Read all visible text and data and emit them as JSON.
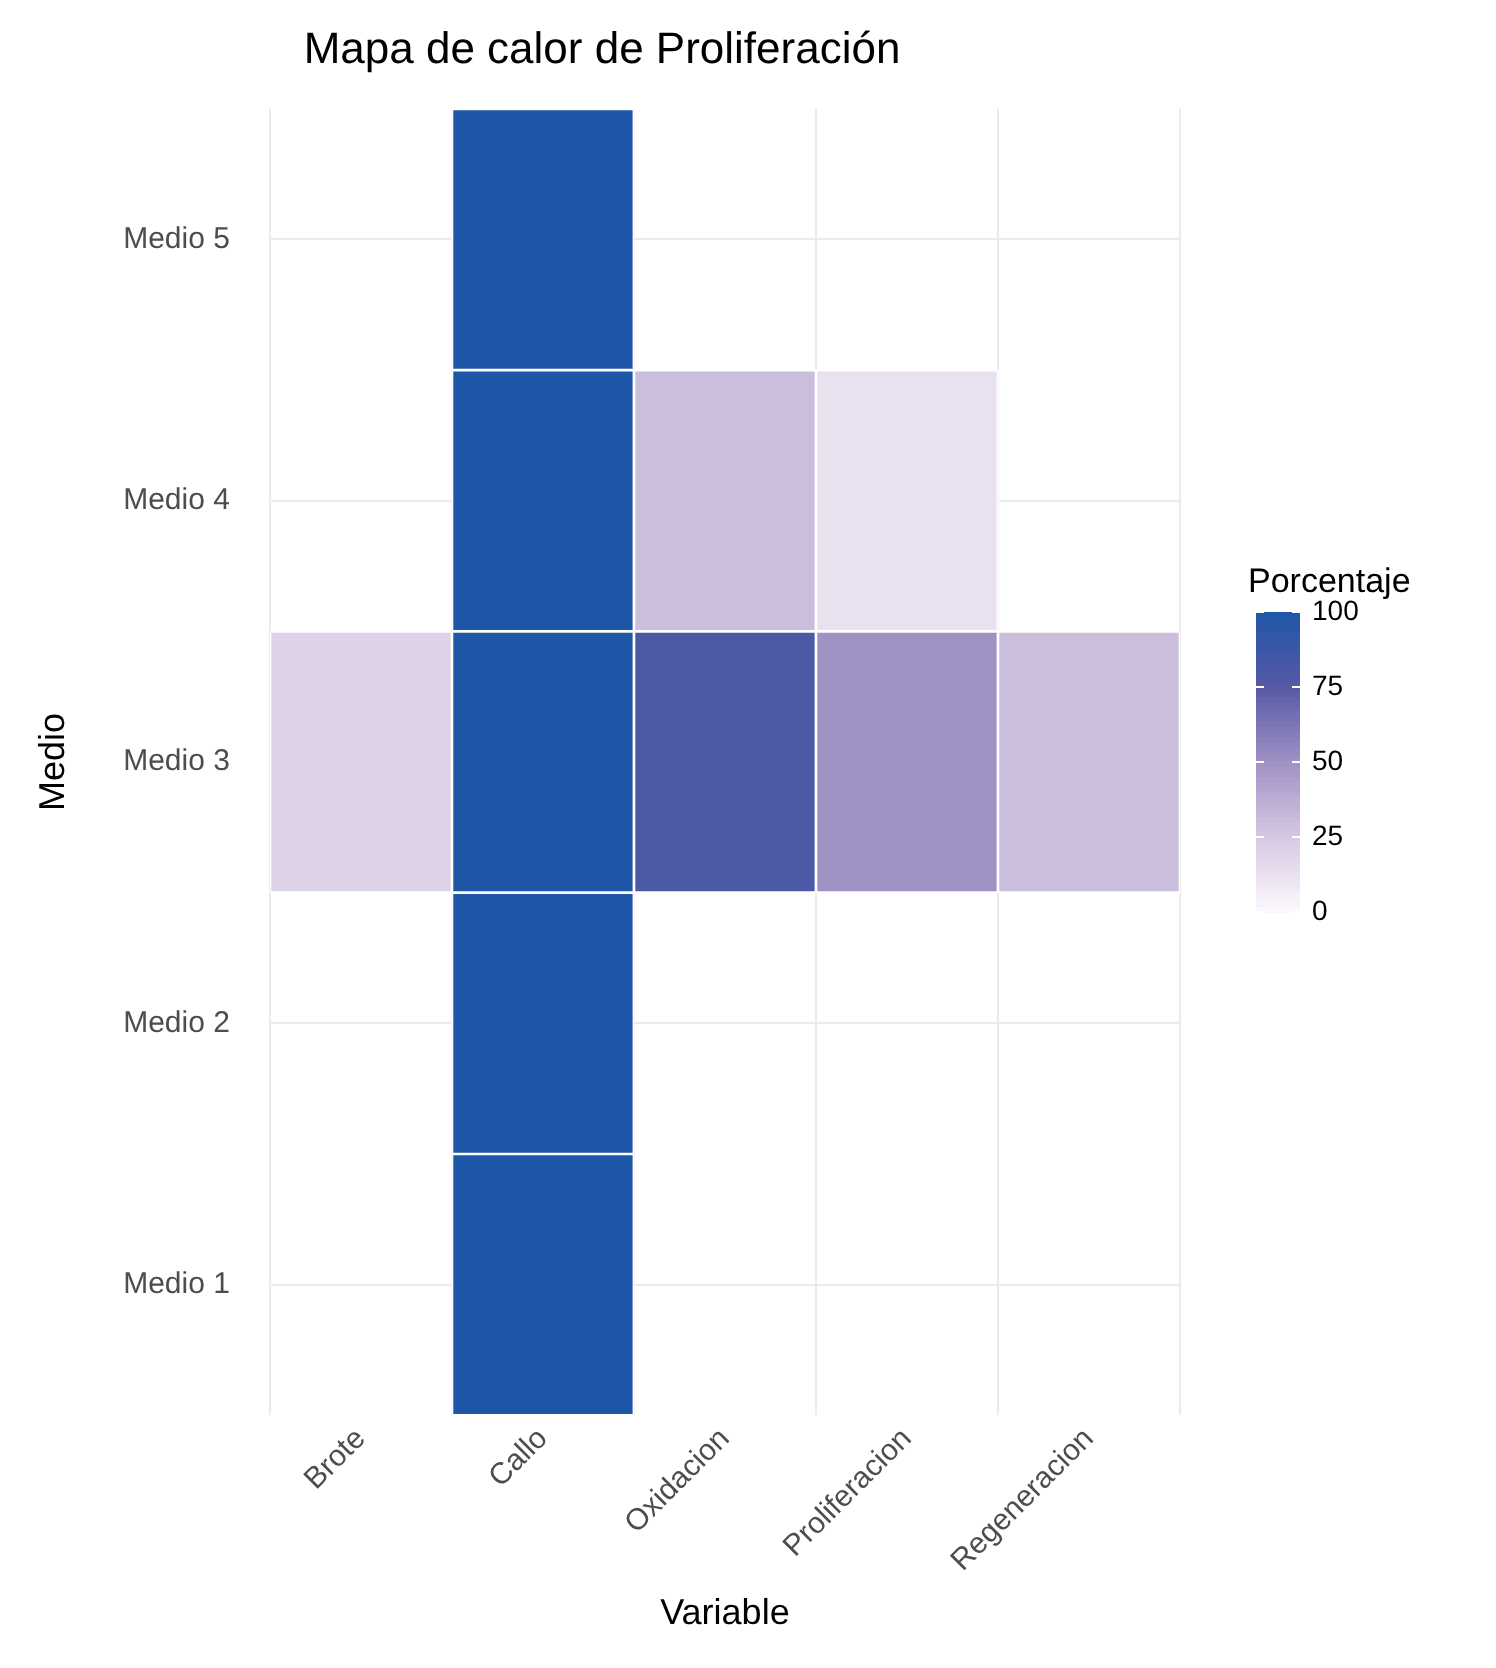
{
  "chart_data": {
    "type": "heatmap",
    "title": "Mapa de calor de Proliferación",
    "xlabel": "Variable",
    "ylabel": "Medio",
    "legend_title": "Porcentaje",
    "categories": [
      "Brote",
      "Callo",
      "Oxidacion",
      "Proliferacion",
      "Regeneracion"
    ],
    "y_categories": [
      "Medio 5",
      "Medio 4",
      "Medio 3",
      "Medio 2",
      "Medio 1"
    ],
    "cells": [
      [
        null,
        100,
        null,
        null,
        null
      ],
      [
        null,
        100,
        30,
        12,
        null
      ],
      [
        20,
        100,
        80,
        50,
        30
      ],
      [
        null,
        100,
        null,
        null,
        null
      ],
      [
        null,
        100,
        null,
        null,
        null
      ]
    ],
    "clim": [
      0,
      100
    ],
    "cticks": [
      0,
      25,
      50,
      75,
      100
    ],
    "grid": true
  }
}
